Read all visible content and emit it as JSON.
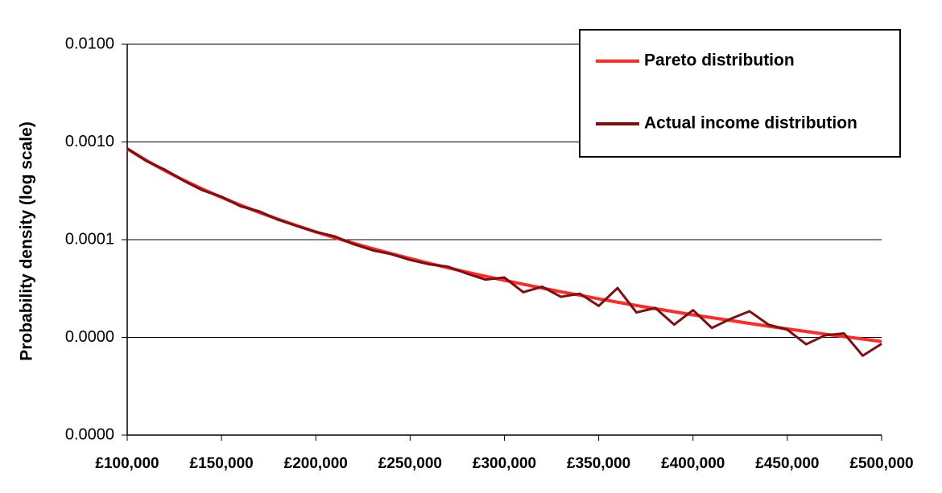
{
  "chart_data": {
    "type": "line",
    "y_label": "Probability density (log scale)",
    "log_y": true,
    "grid": true,
    "legend": "upper right",
    "x": [
      100000,
      110000,
      120000,
      130000,
      140000,
      150000,
      160000,
      170000,
      180000,
      190000,
      200000,
      210000,
      220000,
      230000,
      240000,
      250000,
      260000,
      270000,
      280000,
      290000,
      300000,
      310000,
      320000,
      330000,
      340000,
      350000,
      360000,
      370000,
      380000,
      390000,
      400000,
      410000,
      420000,
      430000,
      440000,
      450000,
      460000,
      470000,
      480000,
      490000,
      500000
    ],
    "series": [
      {
        "name": "Pareto distribution",
        "color": "#ff2a2a",
        "values": [
          0.00085,
          0.00065,
          0.000508,
          0.000406,
          0.000329,
          0.000271,
          0.000226,
          0.00019,
          0.000162,
          0.000139,
          0.00012,
          0.000105,
          9.2e-05,
          8.12e-05,
          7.2e-05,
          6.42e-05,
          5.74e-05,
          5.16e-05,
          4.66e-05,
          4.22e-05,
          3.84e-05,
          3.5e-05,
          3.2e-05,
          2.93e-05,
          2.7e-05,
          2.48e-05,
          2.29e-05,
          2.12e-05,
          1.97e-05,
          1.83e-05,
          1.7e-05,
          1.59e-05,
          1.49e-05,
          1.39e-05,
          1.3e-05,
          1.22e-05,
          1.15e-05,
          1.08e-05,
          1.02e-05,
          9.62e-06,
          9.08e-06
        ]
      },
      {
        "name": "Actual income distribution",
        "color": "#7f0f0f",
        "values": [
          0.00086,
          0.00064,
          0.00052,
          0.0004,
          0.00032,
          0.000275,
          0.00022,
          0.000195,
          0.00016,
          0.000138,
          0.00012,
          0.000108,
          9e-05,
          7.8e-05,
          7.1e-05,
          6.2e-05,
          5.6e-05,
          5.3e-05,
          4.5e-05,
          3.9e-05,
          4.1e-05,
          2.9e-05,
          3.3e-05,
          2.6e-05,
          2.8e-05,
          2.1e-05,
          3.2e-05,
          1.8e-05,
          2e-05,
          1.35e-05,
          1.9e-05,
          1.25e-05,
          1.55e-05,
          1.85e-05,
          1.35e-05,
          1.2e-05,
          8.5e-06,
          1.05e-05,
          1.1e-05,
          6.5e-06,
          8.6e-06
        ]
      }
    ],
    "xlim": [
      100000,
      500000
    ],
    "xticks": [
      {
        "value": 100000,
        "label": "£100,000"
      },
      {
        "value": 150000,
        "label": "£150,000"
      },
      {
        "value": 200000,
        "label": "£200,000"
      },
      {
        "value": 250000,
        "label": "£250,000"
      },
      {
        "value": 300000,
        "label": "£300,000"
      },
      {
        "value": 350000,
        "label": "£350,000"
      },
      {
        "value": 400000,
        "label": "£400,000"
      },
      {
        "value": 450000,
        "label": "£450,000"
      },
      {
        "value": 500000,
        "label": "£500,000"
      }
    ],
    "ylim": [
      1e-06,
      0.01
    ],
    "yticks": [
      {
        "value": 1e-06,
        "label": "0.0000"
      },
      {
        "value": 1e-05,
        "label": "0.0000"
      },
      {
        "value": 0.0001,
        "label": "0.0001"
      },
      {
        "value": 0.001,
        "label": "0.0010"
      },
      {
        "value": 0.01,
        "label": "0.0100"
      }
    ]
  }
}
